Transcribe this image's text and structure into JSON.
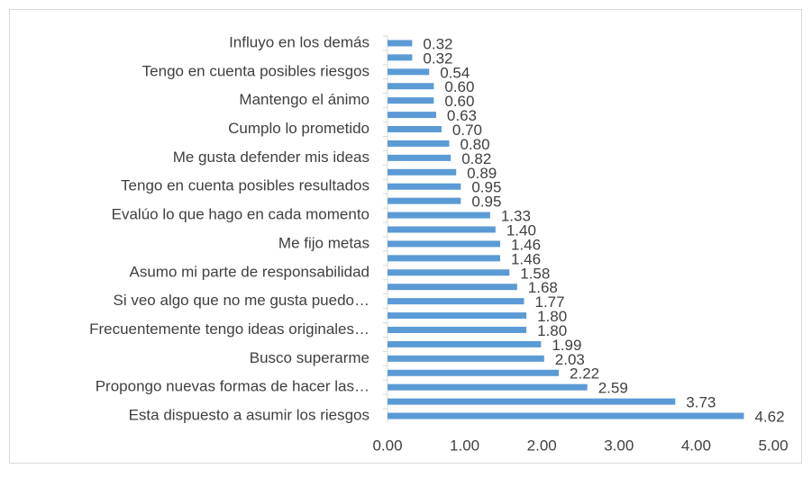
{
  "chart_data": {
    "type": "barh",
    "categories": [
      "Influyo en los demás",
      null,
      "Tengo en cuenta posibles riesgos",
      null,
      "Mantengo el ánimo",
      null,
      "Cumplo lo prometido",
      null,
      "Me gusta defender mis ideas",
      null,
      "Tengo en cuenta posibles resultados",
      null,
      "Evalúo lo que hago en cada momento",
      null,
      "Me fijo metas",
      null,
      "Asumo mi parte de responsabilidad",
      null,
      "Si veo algo que no me gusta puedo…",
      null,
      "Frecuentemente tengo ideas originales…",
      null,
      "Busco superarme",
      null,
      "Propongo nuevas formas de hacer las…",
      null,
      "Esta dispuesto a asumir los riesgos"
    ],
    "values": [
      0.32,
      0.32,
      0.54,
      0.6,
      0.6,
      0.63,
      0.7,
      0.8,
      0.82,
      0.89,
      0.95,
      0.95,
      1.33,
      1.4,
      1.46,
      1.46,
      1.58,
      1.68,
      1.77,
      1.8,
      1.8,
      1.99,
      2.03,
      2.22,
      2.59,
      3.73,
      4.62
    ],
    "value_labels": [
      "0.32",
      "0.32",
      "0.54",
      "0.60",
      "0.60",
      "0.63",
      "0.70",
      "0.80",
      "0.82",
      "0.89",
      "0.95",
      "0.95",
      "1.33",
      "1.40",
      "1.46",
      "1.46",
      "1.58",
      "1.68",
      "1.77",
      "1.80",
      "1.80",
      "1.99",
      "2.03",
      "2.22",
      "2.59",
      "3.73",
      "4.62"
    ],
    "color": "#5b9bd5",
    "xlim": [
      0,
      5
    ],
    "xticks": [
      {
        "value": 0,
        "label": "0.00"
      },
      {
        "value": 1,
        "label": "1.00"
      },
      {
        "value": 2,
        "label": "2.00"
      },
      {
        "value": 3,
        "label": "3.00"
      },
      {
        "value": 4,
        "label": "4.00"
      },
      {
        "value": 5,
        "label": "5.00"
      }
    ],
    "grid": false
  }
}
